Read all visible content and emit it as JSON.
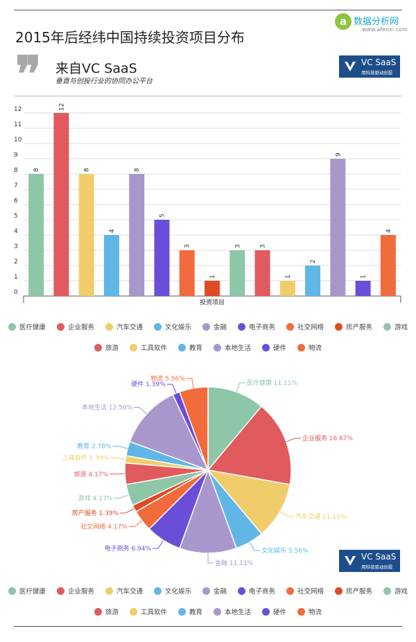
{
  "header": {
    "title": "2015年后经纬中国持续投资项目分布",
    "watermark_name": "数据分析网",
    "watermark_url": "www.afenxi.com"
  },
  "source": {
    "quote_mark": "❞",
    "title": "来自VC SaaS",
    "tagline": "垂直与创投行业的协同办公平台"
  },
  "brand": {
    "name": "VC SaaS",
    "tagline": "用科技驱动创投"
  },
  "colors": [
    "#8ec6a8",
    "#e05a5e",
    "#f0cd6a",
    "#60b6e4",
    "#a897cc",
    "#6b4ed8",
    "#f26b3c",
    "#e04a24",
    "#8ec6a8",
    "#e05a5e",
    "#f0cd6a",
    "#60b6e4",
    "#a897cc",
    "#6b4ed8",
    "#f26b3c"
  ],
  "chart_data": [
    {
      "type": "bar",
      "title": "2015年后经纬中国持续投资项目分布",
      "xlabel": "投资项目",
      "ylabel": "",
      "ylim": [
        0,
        12
      ],
      "yticks": [
        "0",
        "1",
        "2",
        "3",
        "4",
        "5",
        "6",
        "7",
        "8",
        "9",
        "10",
        "11",
        "12"
      ],
      "categories": [
        "医疗健康",
        "企业服务",
        "汽车交通",
        "文化娱乐",
        "金融",
        "电子商务",
        "社交网络",
        "房产服务",
        "游戏",
        "旅游",
        "工具软件",
        "教育",
        "本地生活",
        "硬件",
        "物流"
      ],
      "values": [
        8,
        12,
        8,
        4,
        8,
        5,
        3,
        1,
        3,
        3,
        1,
        2,
        9,
        1,
        4
      ],
      "value_labels": [
        "8",
        "12",
        "8",
        "4",
        "8",
        "5",
        "3",
        "1",
        "3",
        "3",
        "1",
        "2",
        "9",
        "1",
        "4"
      ],
      "legend": [
        "医疗健康",
        "企业服务",
        "汽车交通",
        "文化娱乐",
        "金融",
        "电子商务",
        "社交网络",
        "房产服务",
        "游戏",
        "旅游",
        "工具软件",
        "教育",
        "本地生活",
        "硬件",
        "物流"
      ]
    },
    {
      "type": "pie",
      "categories": [
        "医疗健康",
        "企业服务",
        "汽车交通",
        "文化娱乐",
        "金融",
        "电子商务",
        "社交网络",
        "房产服务",
        "游戏",
        "旅游",
        "工具软件",
        "教育",
        "本地生活",
        "硬件",
        "物流"
      ],
      "values": [
        11.11,
        16.67,
        11.11,
        5.56,
        11.11,
        6.94,
        4.17,
        1.39,
        4.17,
        4.17,
        1.39,
        2.78,
        12.5,
        1.39,
        5.56
      ],
      "slice_labels": [
        "医疗健康 11.11%",
        "企业服务 16.67%",
        "汽车交通 11.11%",
        "文化娱乐 5.56%",
        "金融 11.11%",
        "电子商务 6.94%",
        "社交网络 4.17%",
        "房产服务 1.39%",
        "游戏 4.17%",
        "旅游 4.17%",
        "工具软件 1.39%",
        "教育 2.78%",
        "本地生活 12.50%",
        "硬件 1.39%",
        "物流 5.56%"
      ],
      "legend": [
        "医疗健康",
        "企业服务",
        "汽车交通",
        "文化娱乐",
        "金融",
        "电子商务",
        "社交网络",
        "房产服务",
        "游戏",
        "旅游",
        "工具软件",
        "教育",
        "本地生活",
        "硬件",
        "物流"
      ]
    }
  ]
}
